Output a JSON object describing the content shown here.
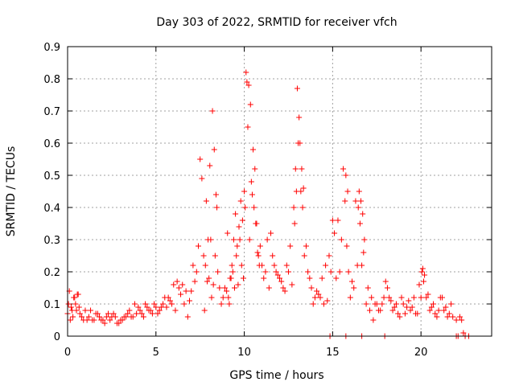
{
  "colors": {
    "series": "#ff0000",
    "axis": "#000000",
    "grid": "#a0a0a0"
  },
  "chart_data": {
    "type": "scatter",
    "title": "Day 303 of 2022, SRMTID for receiver vfch",
    "xlabel": "GPS time / hours",
    "ylabel": "SRMTID / TECUs",
    "xlim": [
      0,
      24
    ],
    "ylim": [
      0,
      0.9
    ],
    "xticks": [
      0,
      5,
      10,
      15,
      20
    ],
    "xtick_labels": [
      "0",
      "5",
      "10",
      "15",
      "20"
    ],
    "yticks": [
      0,
      0.1,
      0.2,
      0.3,
      0.4,
      0.5,
      0.6,
      0.7,
      0.8,
      0.9
    ],
    "ytick_labels": [
      "0",
      "0.1",
      "0.2",
      "0.3",
      "0.4",
      "0.5",
      "0.6",
      "0.7",
      "0.8",
      "0.9"
    ],
    "grid": true,
    "marker": "+",
    "series": [
      {
        "name": "SRMTID",
        "color": "#ff0000",
        "x": [
          0.0,
          0.1,
          0.2,
          0.3,
          0.4,
          0.5,
          0.6,
          0.7,
          0.8,
          0.9,
          1.0,
          1.2,
          1.4,
          1.6,
          1.8,
          2.0,
          2.2,
          2.4,
          2.6,
          2.8,
          3.0,
          3.2,
          3.4,
          3.6,
          3.8,
          4.0,
          4.2,
          4.4,
          4.6,
          4.8,
          5.0,
          5.2,
          5.4,
          5.6,
          5.8,
          6.0,
          6.2,
          6.4,
          6.6,
          6.8,
          7.0,
          7.1,
          7.2,
          7.3,
          7.4,
          7.5,
          7.6,
          7.7,
          7.8,
          7.9,
          8.0,
          8.1,
          8.2,
          8.3,
          8.4,
          8.5,
          8.6,
          8.7,
          8.8,
          8.9,
          9.0,
          9.1,
          9.2,
          9.3,
          9.4,
          9.5,
          9.6,
          9.7,
          9.8,
          9.9,
          10.0,
          10.1,
          10.15,
          10.2,
          10.3,
          10.4,
          10.5,
          10.6,
          10.7,
          10.8,
          10.9,
          11.0,
          11.2,
          11.4,
          11.6,
          11.8,
          12.0,
          12.2,
          12.4,
          12.6,
          12.8,
          12.9,
          13.0,
          13.05,
          13.1,
          13.2,
          13.3,
          13.4,
          13.6,
          13.8,
          14.0,
          14.2,
          14.4,
          14.6,
          14.8,
          15.0,
          15.1,
          15.2,
          15.4,
          15.6,
          15.7,
          15.8,
          15.9,
          16.0,
          16.2,
          16.4,
          16.5,
          16.6,
          16.7,
          16.8,
          17.0,
          17.2,
          17.4,
          17.6,
          17.8,
          18.0,
          18.2,
          18.4,
          18.6,
          18.8,
          19.0,
          19.2,
          19.4,
          19.6,
          19.8,
          20.0,
          20.1,
          20.2,
          20.4,
          20.6,
          20.8,
          21.0,
          21.2,
          21.4,
          21.6,
          21.8,
          22.0,
          22.2,
          22.4,
          0.05,
          0.15,
          0.25,
          0.35,
          0.45,
          0.55,
          0.65,
          1.1,
          1.3,
          1.5,
          1.7,
          1.9,
          2.1,
          2.3,
          2.5,
          2.7,
          2.9,
          3.1,
          3.3,
          3.5,
          3.7,
          3.9,
          4.1,
          4.3,
          4.5,
          4.7,
          4.9,
          5.1,
          5.3,
          5.5,
          5.7,
          5.9,
          6.1,
          6.3,
          6.5,
          6.7,
          6.9,
          7.75,
          7.85,
          7.95,
          8.05,
          8.15,
          8.25,
          8.35,
          8.45,
          9.05,
          9.15,
          9.25,
          9.35,
          9.45,
          9.55,
          9.65,
          9.75,
          9.85,
          9.95,
          10.05,
          10.25,
          10.35,
          10.45,
          10.55,
          10.65,
          10.75,
          10.85,
          11.1,
          11.3,
          11.5,
          11.7,
          11.9,
          12.1,
          12.3,
          12.5,
          12.7,
          12.85,
          12.95,
          13.15,
          13.25,
          13.35,
          13.5,
          13.7,
          13.9,
          14.1,
          14.3,
          14.5,
          14.7,
          14.9,
          15.3,
          15.5,
          15.75,
          15.85,
          16.1,
          16.3,
          16.45,
          16.55,
          16.65,
          16.75,
          16.9,
          17.1,
          17.3,
          17.5,
          17.7,
          17.9,
          18.1,
          18.3,
          18.5,
          18.7,
          18.9,
          19.1,
          19.3,
          19.5,
          19.7,
          19.9,
          20.05,
          20.15,
          20.3,
          20.5,
          20.7,
          20.9,
          21.1,
          21.3,
          21.5,
          21.7,
          14.85,
          15.75,
          16.65,
          17.95,
          22.0,
          22.1,
          22.3,
          22.5,
          22.7
        ],
        "y": [
          0.07,
          0.14,
          0.09,
          0.06,
          0.12,
          0.08,
          0.13,
          0.07,
          0.06,
          0.05,
          0.08,
          0.06,
          0.05,
          0.07,
          0.06,
          0.05,
          0.06,
          0.05,
          0.07,
          0.04,
          0.05,
          0.06,
          0.07,
          0.06,
          0.1,
          0.09,
          0.07,
          0.1,
          0.08,
          0.07,
          0.09,
          0.08,
          0.1,
          0.09,
          0.11,
          0.16,
          0.17,
          0.13,
          0.1,
          0.06,
          0.14,
          0.22,
          0.17,
          0.2,
          0.28,
          0.55,
          0.49,
          0.25,
          0.22,
          0.17,
          0.18,
          0.3,
          0.7,
          0.58,
          0.44,
          0.2,
          0.15,
          0.1,
          0.12,
          0.15,
          0.14,
          0.12,
          0.18,
          0.22,
          0.3,
          0.38,
          0.28,
          0.34,
          0.42,
          0.36,
          0.45,
          0.82,
          0.79,
          0.65,
          0.3,
          0.48,
          0.58,
          0.52,
          0.35,
          0.25,
          0.28,
          0.22,
          0.2,
          0.15,
          0.25,
          0.2,
          0.18,
          0.15,
          0.22,
          0.28,
          0.4,
          0.52,
          0.77,
          0.6,
          0.68,
          0.45,
          0.4,
          0.25,
          0.2,
          0.15,
          0.12,
          0.13,
          0.18,
          0.22,
          0.25,
          0.36,
          0.32,
          0.18,
          0.2,
          0.52,
          0.42,
          0.28,
          0.2,
          0.12,
          0.15,
          0.22,
          0.45,
          0.42,
          0.38,
          0.3,
          0.15,
          0.12,
          0.1,
          0.08,
          0.1,
          0.17,
          0.12,
          0.08,
          0.1,
          0.06,
          0.1,
          0.09,
          0.08,
          0.12,
          0.07,
          0.12,
          0.21,
          0.19,
          0.13,
          0.09,
          0.07,
          0.08,
          0.12,
          0.09,
          0.07,
          0.06,
          0.05,
          0.06,
          0.01,
          0.1,
          0.05,
          0.08,
          0.12,
          0.1,
          0.13,
          0.09,
          0.05,
          0.08,
          0.05,
          0.07,
          0.05,
          0.04,
          0.07,
          0.06,
          0.06,
          0.04,
          0.05,
          0.06,
          0.08,
          0.06,
          0.07,
          0.08,
          0.06,
          0.09,
          0.08,
          0.1,
          0.07,
          0.09,
          0.12,
          0.12,
          0.1,
          0.08,
          0.15,
          0.16,
          0.14,
          0.11,
          0.08,
          0.42,
          0.3,
          0.53,
          0.12,
          0.16,
          0.25,
          0.4,
          0.32,
          0.1,
          0.18,
          0.2,
          0.15,
          0.25,
          0.16,
          0.3,
          0.22,
          0.18,
          0.4,
          0.78,
          0.72,
          0.44,
          0.4,
          0.35,
          0.26,
          0.22,
          0.18,
          0.3,
          0.32,
          0.22,
          0.19,
          0.17,
          0.14,
          0.2,
          0.16,
          0.35,
          0.45,
          0.6,
          0.52,
          0.46,
          0.28,
          0.18,
          0.1,
          0.14,
          0.12,
          0.1,
          0.11,
          0.2,
          0.36,
          0.3,
          0.5,
          0.45,
          0.17,
          0.42,
          0.4,
          0.35,
          0.22,
          0.26,
          0.1,
          0.08,
          0.05,
          0.1,
          0.08,
          0.12,
          0.15,
          0.11,
          0.09,
          0.07,
          0.12,
          0.07,
          0.11,
          0.09,
          0.07,
          0.16,
          0.2,
          0.17,
          0.12,
          0.08,
          0.1,
          0.06,
          0.12,
          0.08,
          0.06,
          0.1,
          0.0,
          0.0,
          0.0,
          0.0,
          0.0,
          0.0,
          0.05,
          0.0,
          0.0
        ]
      }
    ]
  }
}
